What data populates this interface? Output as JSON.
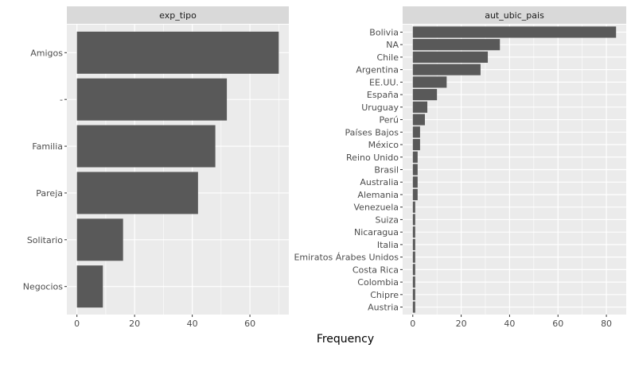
{
  "xlabel": "Frequency",
  "chart_data": [
    {
      "type": "bar",
      "orientation": "horizontal",
      "panel_title": "exp_tipo",
      "categories": [
        "Amigos",
        "-",
        "Familia",
        "Pareja",
        "Solitario",
        "Negocios"
      ],
      "values": [
        70,
        52,
        48,
        42,
        16,
        9
      ],
      "xlim": [
        -3.5,
        73.5
      ],
      "xticks": [
        0,
        20,
        40,
        60
      ],
      "xlabel": "Frequency",
      "ylabel": "",
      "grid": true,
      "bar_color": "#595959",
      "panel_bg": "#ebebeb",
      "strip_bg": "#d9d9d9"
    },
    {
      "type": "bar",
      "orientation": "horizontal",
      "panel_title": "aut_ubic_pais",
      "categories": [
        "Bolivia",
        "NA",
        "Chile",
        "Argentina",
        "EE.UU.",
        "España",
        "Uruguay",
        "Perú",
        "Países Bajos",
        "México",
        "Reino Unido",
        "Brasil",
        "Australia",
        "Alemania",
        "Venezuela",
        "Suiza",
        "Nicaragua",
        "Italia",
        "Emiratos Árabes Unidos",
        "Costa Rica",
        "Colombia",
        "Chipre",
        "Austria"
      ],
      "values": [
        84,
        36,
        31,
        28,
        14,
        10,
        6,
        5,
        3,
        3,
        2,
        2,
        2,
        2,
        1,
        1,
        1,
        1,
        1,
        1,
        1,
        1,
        1
      ],
      "xlim": [
        -4.2,
        88.2
      ],
      "xticks": [
        0,
        20,
        40,
        60,
        80
      ],
      "xlabel": "Frequency",
      "ylabel": "",
      "grid": true,
      "bar_color": "#595959",
      "panel_bg": "#ebebeb",
      "strip_bg": "#d9d9d9"
    }
  ]
}
